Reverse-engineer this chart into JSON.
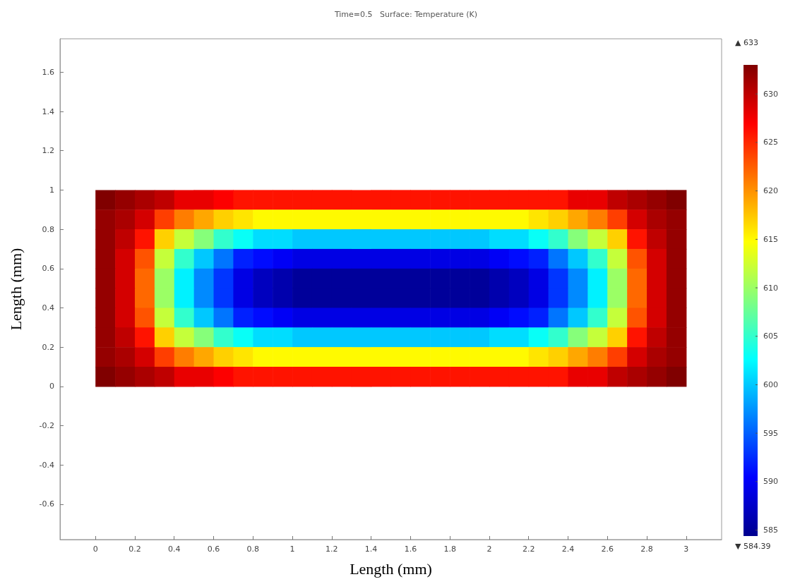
{
  "chart_data": {
    "type": "heatmap",
    "title": "Time=0.5   Surface: Temperature (K)",
    "xlabel": "Length (mm)",
    "ylabel": "Length (mm)",
    "x": [
      0.05,
      0.15,
      0.25,
      0.35,
      0.45,
      0.55,
      0.65,
      0.75,
      0.85,
      0.95,
      1.05,
      1.15,
      1.25,
      1.35,
      1.45,
      1.55,
      1.65,
      1.75,
      1.85,
      1.95,
      2.05,
      2.15,
      2.25,
      2.35,
      2.45,
      2.55,
      2.65,
      2.75,
      2.85,
      2.95
    ],
    "y": [
      0.95,
      0.85,
      0.75,
      0.65,
      0.55,
      0.45,
      0.35,
      0.25,
      0.15,
      0.05
    ],
    "cells": [
      [
        633,
        632,
        631,
        630,
        628,
        628,
        627,
        626,
        626,
        626,
        626,
        626,
        626,
        626,
        626,
        626,
        626,
        626,
        626,
        626,
        626,
        626,
        626,
        626,
        628,
        628,
        630,
        631,
        632,
        633
      ],
      [
        632,
        631,
        629,
        624,
        621,
        619,
        617,
        616,
        615,
        615,
        615,
        615,
        615,
        615,
        615,
        615,
        615,
        615,
        615,
        615,
        615,
        615,
        616,
        617,
        619,
        621,
        624,
        629,
        631,
        632
      ],
      [
        632,
        630,
        626,
        617,
        612,
        609,
        605,
        603,
        601,
        601,
        600,
        600,
        600,
        600,
        600,
        600,
        600,
        600,
        600,
        600,
        601,
        601,
        603,
        605,
        609,
        612,
        617,
        626,
        630,
        632
      ],
      [
        632,
        629,
        623,
        612,
        605,
        600,
        596,
        592,
        591,
        590,
        589,
        589,
        589,
        589,
        589,
        589,
        589,
        589,
        589,
        589,
        590,
        591,
        592,
        596,
        600,
        605,
        612,
        623,
        629,
        632
      ],
      [
        632,
        629,
        622,
        610,
        602,
        597,
        593,
        589,
        587,
        586,
        585,
        585,
        585,
        585,
        585,
        585,
        585,
        585,
        585,
        585,
        586,
        587,
        589,
        593,
        597,
        602,
        610,
        622,
        629,
        632
      ],
      [
        632,
        629,
        622,
        610,
        602,
        597,
        593,
        589,
        587,
        586,
        585,
        585,
        585,
        585,
        585,
        585,
        585,
        585,
        585,
        585,
        586,
        587,
        589,
        593,
        597,
        602,
        610,
        622,
        629,
        632
      ],
      [
        632,
        629,
        623,
        612,
        605,
        600,
        596,
        592,
        591,
        590,
        589,
        589,
        589,
        589,
        589,
        589,
        589,
        589,
        589,
        589,
        590,
        591,
        592,
        596,
        600,
        605,
        612,
        623,
        629,
        632
      ],
      [
        632,
        630,
        626,
        617,
        612,
        609,
        605,
        603,
        601,
        601,
        600,
        600,
        600,
        600,
        600,
        600,
        600,
        600,
        600,
        600,
        601,
        601,
        603,
        605,
        609,
        612,
        617,
        626,
        630,
        632
      ],
      [
        632,
        631,
        629,
        624,
        621,
        619,
        617,
        616,
        615,
        615,
        615,
        615,
        615,
        615,
        615,
        615,
        615,
        615,
        615,
        615,
        615,
        615,
        616,
        617,
        619,
        621,
        624,
        629,
        631,
        632
      ],
      [
        633,
        632,
        631,
        630,
        628,
        628,
        627,
        626,
        626,
        626,
        626,
        626,
        626,
        626,
        626,
        626,
        626,
        626,
        626,
        626,
        626,
        626,
        626,
        626,
        628,
        628,
        630,
        631,
        632,
        633
      ]
    ],
    "clim": [
      584.39,
      633
    ],
    "cticks": [
      585,
      590,
      595,
      600,
      605,
      610,
      615,
      620,
      625,
      630
    ],
    "annotations": [
      "▲ 633",
      "▼ 584.39"
    ],
    "xlim": [
      -0.18,
      3.18
    ],
    "xticks": [
      0,
      0.2,
      0.4,
      0.6,
      0.8,
      1,
      1.2,
      1.4,
      1.6,
      1.8,
      2,
      2.2,
      2.4,
      2.6,
      2.8,
      3
    ],
    "ylim": [
      -0.78,
      1.77
    ],
    "yticks": [
      -0.6,
      -0.4,
      -0.2,
      0,
      0.2,
      0.4,
      0.6,
      0.8,
      1,
      1.2,
      1.4,
      1.6
    ],
    "grid": false
  }
}
